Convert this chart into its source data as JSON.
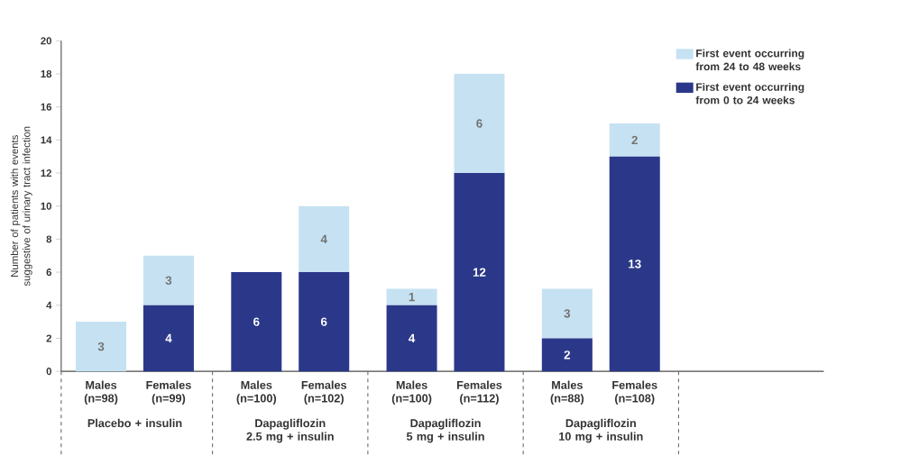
{
  "chart_data": {
    "type": "bar",
    "stacked": true,
    "ylabel": "Number of patients with events suggestive of urinary tract infection",
    "categories": [
      "Males (n=98)",
      "Females (n=99)",
      "Males (n=100)",
      "Females (n=102)",
      "Males (n=100)",
      "Females (n=112)",
      "Males (n=88)",
      "Females (n=108)"
    ],
    "series": [
      {
        "name": "First event occurring from 0 to 24 weeks",
        "color": "#2b3889",
        "values": [
          0,
          4,
          6,
          6,
          4,
          12,
          2,
          13
        ],
        "value_labels": [
          null,
          "4",
          "6",
          "6",
          "4",
          "12",
          "2",
          "13"
        ]
      },
      {
        "name": "First event occurring from 24 to 48 weeks",
        "color": "#c6e2f2",
        "values": [
          3,
          3,
          0,
          4,
          1,
          6,
          3,
          2
        ],
        "value_labels": [
          "3",
          "3",
          null,
          "4",
          "1",
          "6",
          "3",
          "2"
        ]
      }
    ],
    "ylim": [
      0,
      20
    ],
    "yticks": [
      0,
      2,
      4,
      6,
      8,
      10,
      12,
      14,
      16,
      18,
      20
    ],
    "legend": "top right",
    "annotations": [
      "Placebo + insulin",
      "Dapagliflozin 2.5 mg + insulin",
      "Dapagliflozin 5 mg + insulin",
      "Dapagliflozin 10 mg + insulin"
    ]
  }
}
